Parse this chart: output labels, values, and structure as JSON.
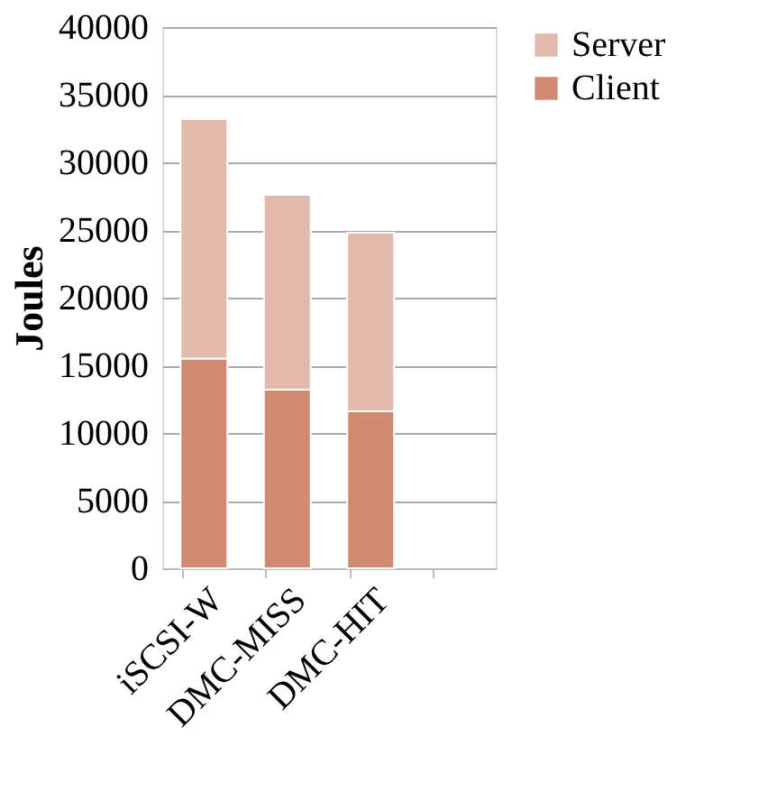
{
  "chart_data": {
    "type": "bar",
    "ylabel": "Joules",
    "stacked": true,
    "categories": [
      "iSCSI-W",
      "DMC-MISS",
      "DMC-HIT",
      null
    ],
    "series": [
      {
        "name": "Client",
        "color": "#d08a72",
        "values": [
          15500,
          13200,
          11600,
          null
        ]
      },
      {
        "name": "Server",
        "color": "#e2b9ad",
        "values": [
          17700,
          14400,
          13200,
          null
        ]
      }
    ],
    "ylim": [
      0,
      40000
    ],
    "yticks": [
      0,
      5000,
      10000,
      15000,
      20000,
      25000,
      30000,
      35000,
      40000
    ],
    "grid": "y",
    "legend": "right"
  }
}
